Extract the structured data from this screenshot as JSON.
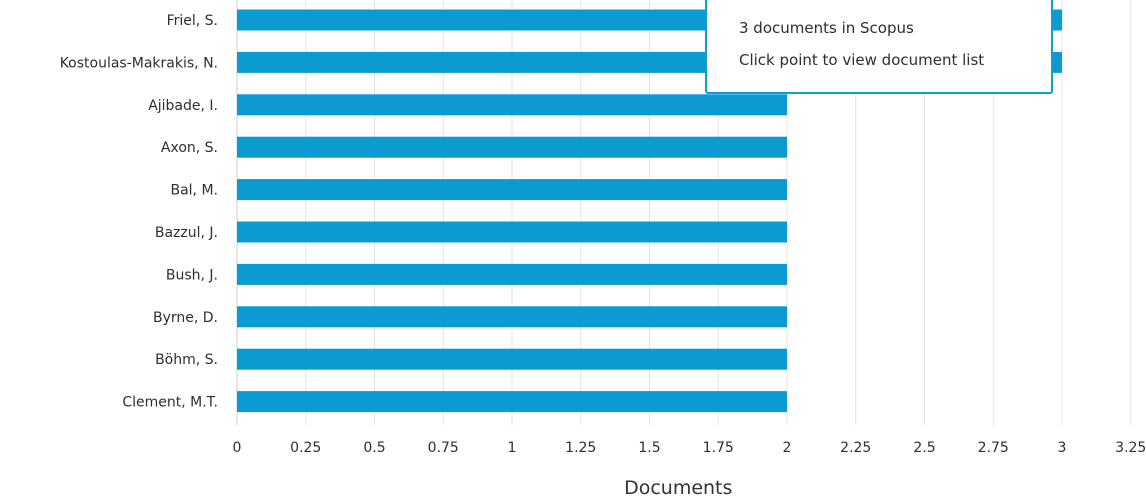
{
  "chart_data": {
    "type": "bar",
    "orientation": "horizontal",
    "categories": [
      "Friel, S.",
      "Kostoulas-Makrakis, N.",
      "Ajibade, I.",
      "Axon, S.",
      "Bal, M.",
      "Bazzul, J.",
      "Bush, J.",
      "Byrne, D.",
      "Böhm, S.",
      "Clement, M.T."
    ],
    "values": [
      3,
      3,
      2,
      2,
      2,
      2,
      2,
      2,
      2,
      2
    ],
    "xlabel": "Documents",
    "ylabel": "",
    "xlim": [
      0,
      3.25
    ],
    "xticks": [
      "0",
      "0.25",
      "0.5",
      "0.75",
      "1",
      "1.25",
      "1.5",
      "1.75",
      "2",
      "2.25",
      "2.5",
      "2.75",
      "3",
      "3.25"
    ],
    "grid": "vertical",
    "bar_color": "#0b9bd1"
  },
  "tooltip": {
    "documents_text": "3 documents in Scopus",
    "click_text": "Click point to view document list",
    "border_color": "#0c9ed4"
  }
}
